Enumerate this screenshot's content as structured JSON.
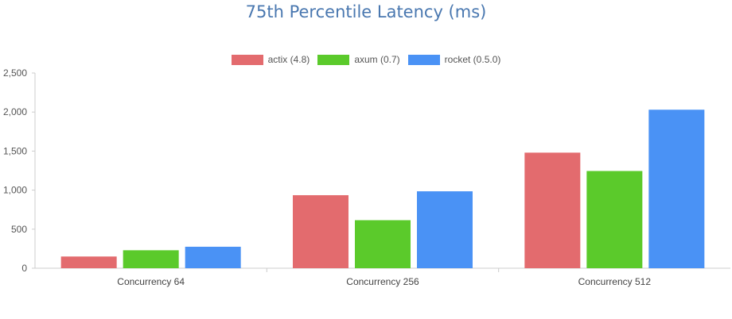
{
  "chart_data": {
    "type": "bar",
    "title": "75th Percentile Latency (ms)",
    "xlabel": "",
    "ylabel": "",
    "categories": [
      "Concurrency 64",
      "Concurrency 256",
      "Concurrency 512"
    ],
    "series": [
      {
        "name": "actix (4.8)",
        "color": "#e36b6e",
        "values": [
          150,
          935,
          1480
        ]
      },
      {
        "name": "axum (0.7)",
        "color": "#5bca2b",
        "values": [
          230,
          615,
          1245
        ]
      },
      {
        "name": "rocket (0.5.0)",
        "color": "#4a92f5",
        "values": [
          275,
          985,
          2030
        ]
      }
    ],
    "ylim": [
      0,
      2500
    ],
    "yticks": [
      "0",
      "500",
      "1,000",
      "1,500",
      "2,000",
      "2,500"
    ],
    "ytick_values": [
      0,
      500,
      1000,
      1500,
      2000,
      2500
    ],
    "grid": false,
    "legend_position": "top"
  }
}
